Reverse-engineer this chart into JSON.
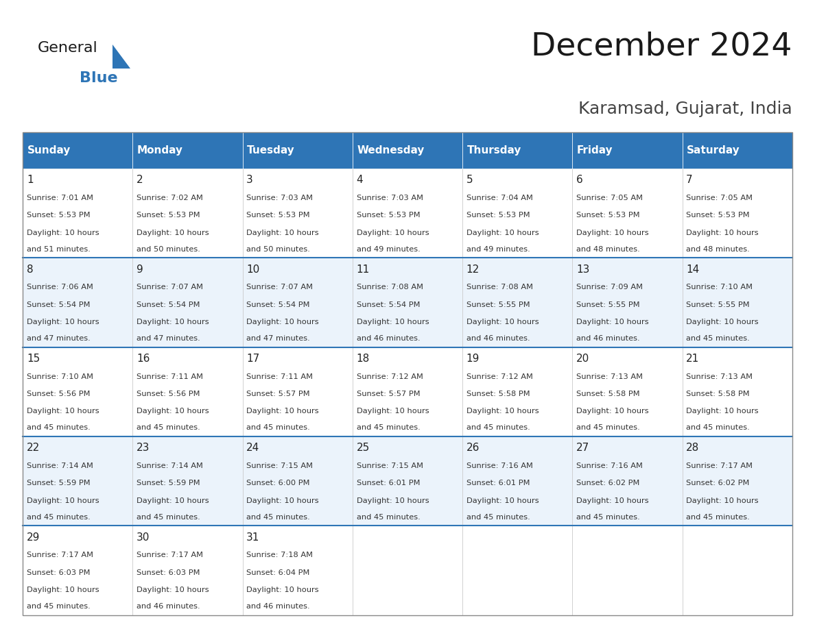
{
  "title": "December 2024",
  "subtitle": "Karamsad, Gujarat, India",
  "header_color": "#2E75B6",
  "header_text_color": "#FFFFFF",
  "cell_bg_even": "#FFFFFF",
  "cell_bg_odd": "#EBF3FB",
  "border_color": "#AAAAAA",
  "row_border_color": "#2E75B6",
  "day_headers": [
    "Sunday",
    "Monday",
    "Tuesday",
    "Wednesday",
    "Thursday",
    "Friday",
    "Saturday"
  ],
  "title_color": "#1A1A1A",
  "subtitle_color": "#444444",
  "cell_text_color": "#333333",
  "day_num_color": "#222222",
  "logo_general_color": "#1A1A1A",
  "logo_blue_color": "#2E75B6",
  "logo_triangle_color": "#2E75B6",
  "days": [
    {
      "day": 1,
      "col": 0,
      "row": 0,
      "sunrise": "7:01 AM",
      "sunset": "5:53 PM",
      "daylight": "10 hours and 51 minutes."
    },
    {
      "day": 2,
      "col": 1,
      "row": 0,
      "sunrise": "7:02 AM",
      "sunset": "5:53 PM",
      "daylight": "10 hours and 50 minutes."
    },
    {
      "day": 3,
      "col": 2,
      "row": 0,
      "sunrise": "7:03 AM",
      "sunset": "5:53 PM",
      "daylight": "10 hours and 50 minutes."
    },
    {
      "day": 4,
      "col": 3,
      "row": 0,
      "sunrise": "7:03 AM",
      "sunset": "5:53 PM",
      "daylight": "10 hours and 49 minutes."
    },
    {
      "day": 5,
      "col": 4,
      "row": 0,
      "sunrise": "7:04 AM",
      "sunset": "5:53 PM",
      "daylight": "10 hours and 49 minutes."
    },
    {
      "day": 6,
      "col": 5,
      "row": 0,
      "sunrise": "7:05 AM",
      "sunset": "5:53 PM",
      "daylight": "10 hours and 48 minutes."
    },
    {
      "day": 7,
      "col": 6,
      "row": 0,
      "sunrise": "7:05 AM",
      "sunset": "5:53 PM",
      "daylight": "10 hours and 48 minutes."
    },
    {
      "day": 8,
      "col": 0,
      "row": 1,
      "sunrise": "7:06 AM",
      "sunset": "5:54 PM",
      "daylight": "10 hours and 47 minutes."
    },
    {
      "day": 9,
      "col": 1,
      "row": 1,
      "sunrise": "7:07 AM",
      "sunset": "5:54 PM",
      "daylight": "10 hours and 47 minutes."
    },
    {
      "day": 10,
      "col": 2,
      "row": 1,
      "sunrise": "7:07 AM",
      "sunset": "5:54 PM",
      "daylight": "10 hours and 47 minutes."
    },
    {
      "day": 11,
      "col": 3,
      "row": 1,
      "sunrise": "7:08 AM",
      "sunset": "5:54 PM",
      "daylight": "10 hours and 46 minutes."
    },
    {
      "day": 12,
      "col": 4,
      "row": 1,
      "sunrise": "7:08 AM",
      "sunset": "5:55 PM",
      "daylight": "10 hours and 46 minutes."
    },
    {
      "day": 13,
      "col": 5,
      "row": 1,
      "sunrise": "7:09 AM",
      "sunset": "5:55 PM",
      "daylight": "10 hours and 46 minutes."
    },
    {
      "day": 14,
      "col": 6,
      "row": 1,
      "sunrise": "7:10 AM",
      "sunset": "5:55 PM",
      "daylight": "10 hours and 45 minutes."
    },
    {
      "day": 15,
      "col": 0,
      "row": 2,
      "sunrise": "7:10 AM",
      "sunset": "5:56 PM",
      "daylight": "10 hours and 45 minutes."
    },
    {
      "day": 16,
      "col": 1,
      "row": 2,
      "sunrise": "7:11 AM",
      "sunset": "5:56 PM",
      "daylight": "10 hours and 45 minutes."
    },
    {
      "day": 17,
      "col": 2,
      "row": 2,
      "sunrise": "7:11 AM",
      "sunset": "5:57 PM",
      "daylight": "10 hours and 45 minutes."
    },
    {
      "day": 18,
      "col": 3,
      "row": 2,
      "sunrise": "7:12 AM",
      "sunset": "5:57 PM",
      "daylight": "10 hours and 45 minutes."
    },
    {
      "day": 19,
      "col": 4,
      "row": 2,
      "sunrise": "7:12 AM",
      "sunset": "5:58 PM",
      "daylight": "10 hours and 45 minutes."
    },
    {
      "day": 20,
      "col": 5,
      "row": 2,
      "sunrise": "7:13 AM",
      "sunset": "5:58 PM",
      "daylight": "10 hours and 45 minutes."
    },
    {
      "day": 21,
      "col": 6,
      "row": 2,
      "sunrise": "7:13 AM",
      "sunset": "5:58 PM",
      "daylight": "10 hours and 45 minutes."
    },
    {
      "day": 22,
      "col": 0,
      "row": 3,
      "sunrise": "7:14 AM",
      "sunset": "5:59 PM",
      "daylight": "10 hours and 45 minutes."
    },
    {
      "day": 23,
      "col": 1,
      "row": 3,
      "sunrise": "7:14 AM",
      "sunset": "5:59 PM",
      "daylight": "10 hours and 45 minutes."
    },
    {
      "day": 24,
      "col": 2,
      "row": 3,
      "sunrise": "7:15 AM",
      "sunset": "6:00 PM",
      "daylight": "10 hours and 45 minutes."
    },
    {
      "day": 25,
      "col": 3,
      "row": 3,
      "sunrise": "7:15 AM",
      "sunset": "6:01 PM",
      "daylight": "10 hours and 45 minutes."
    },
    {
      "day": 26,
      "col": 4,
      "row": 3,
      "sunrise": "7:16 AM",
      "sunset": "6:01 PM",
      "daylight": "10 hours and 45 minutes."
    },
    {
      "day": 27,
      "col": 5,
      "row": 3,
      "sunrise": "7:16 AM",
      "sunset": "6:02 PM",
      "daylight": "10 hours and 45 minutes."
    },
    {
      "day": 28,
      "col": 6,
      "row": 3,
      "sunrise": "7:17 AM",
      "sunset": "6:02 PM",
      "daylight": "10 hours and 45 minutes."
    },
    {
      "day": 29,
      "col": 0,
      "row": 4,
      "sunrise": "7:17 AM",
      "sunset": "6:03 PM",
      "daylight": "10 hours and 45 minutes."
    },
    {
      "day": 30,
      "col": 1,
      "row": 4,
      "sunrise": "7:17 AM",
      "sunset": "6:03 PM",
      "daylight": "10 hours and 46 minutes."
    },
    {
      "day": 31,
      "col": 2,
      "row": 4,
      "sunrise": "7:18 AM",
      "sunset": "6:04 PM",
      "daylight": "10 hours and 46 minutes."
    }
  ]
}
